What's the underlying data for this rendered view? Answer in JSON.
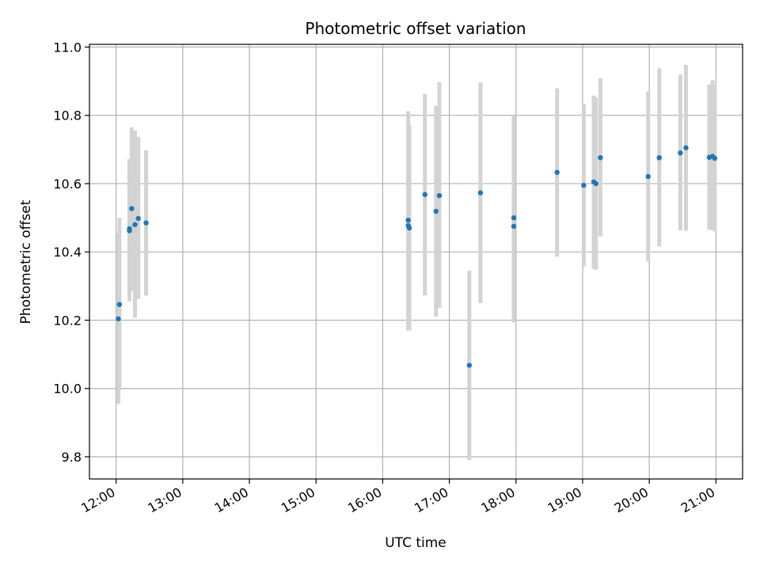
{
  "chart_data": {
    "type": "scatter",
    "title": "Photometric offset variation",
    "xlabel": "UTC time",
    "ylabel": "Photometric offset",
    "x_tick_labels": [
      "12:00",
      "13:00",
      "14:00",
      "15:00",
      "16:00",
      "17:00",
      "18:00",
      "19:00",
      "20:00",
      "21:00"
    ],
    "x_ticks_hours": [
      12,
      13,
      14,
      15,
      16,
      17,
      18,
      19,
      20,
      21
    ],
    "y_tick_labels": [
      "9.8",
      "10.0",
      "10.2",
      "10.4",
      "10.6",
      "10.8",
      "11.0"
    ],
    "y_ticks": [
      9.8,
      10.0,
      10.2,
      10.4,
      10.6,
      10.8,
      11.0
    ],
    "xlim": [
      "11:36",
      "21:24"
    ],
    "ylim": [
      9.735,
      11.008
    ],
    "grid": true,
    "colors": {
      "point": "#1f77b4",
      "errorbar": "#d3d3d3",
      "grid": "#b0b0b0"
    },
    "points": [
      {
        "x": "12:02",
        "y": 10.204,
        "lo": 9.955,
        "hi": 10.455
      },
      {
        "x": "12:03",
        "y": 10.246,
        "lo": 9.995,
        "hi": 10.5
      },
      {
        "x": "12:12",
        "y": 10.462,
        "lo": 10.255,
        "hi": 10.672
      },
      {
        "x": "12:12",
        "y": 10.468,
        "lo": 10.265,
        "hi": 10.672
      },
      {
        "x": "12:14",
        "y": 10.527,
        "lo": 10.285,
        "hi": 10.765
      },
      {
        "x": "12:17",
        "y": 10.48,
        "lo": 10.207,
        "hi": 10.755
      },
      {
        "x": "12:20",
        "y": 10.498,
        "lo": 10.262,
        "hi": 10.737
      },
      {
        "x": "12:27",
        "y": 10.485,
        "lo": 10.272,
        "hi": 10.698
      },
      {
        "x": "16:23",
        "y": 10.493,
        "lo": 10.17,
        "hi": 10.812
      },
      {
        "x": "16:23",
        "y": 10.477,
        "lo": 10.17,
        "hi": 10.78
      },
      {
        "x": "16:24",
        "y": 10.47,
        "lo": 10.17,
        "hi": 10.77
      },
      {
        "x": "16:38",
        "y": 10.568,
        "lo": 10.273,
        "hi": 10.863
      },
      {
        "x": "16:48",
        "y": 10.519,
        "lo": 10.21,
        "hi": 10.828
      },
      {
        "x": "16:51",
        "y": 10.565,
        "lo": 10.236,
        "hi": 10.897
      },
      {
        "x": "17:18",
        "y": 10.068,
        "lo": 9.79,
        "hi": 10.345
      },
      {
        "x": "17:28",
        "y": 10.573,
        "lo": 10.25,
        "hi": 10.896
      },
      {
        "x": "17:58",
        "y": 10.5,
        "lo": 10.195,
        "hi": 10.8
      },
      {
        "x": "17:58",
        "y": 10.475,
        "lo": 10.193,
        "hi": 10.795
      },
      {
        "x": "18:37",
        "y": 10.633,
        "lo": 10.386,
        "hi": 10.879
      },
      {
        "x": "19:01",
        "y": 10.595,
        "lo": 10.358,
        "hi": 10.833
      },
      {
        "x": "19:10",
        "y": 10.605,
        "lo": 10.35,
        "hi": 10.858
      },
      {
        "x": "19:12",
        "y": 10.6,
        "lo": 10.348,
        "hi": 10.852
      },
      {
        "x": "19:16",
        "y": 10.676,
        "lo": 10.445,
        "hi": 10.908
      },
      {
        "x": "19:59",
        "y": 10.621,
        "lo": 10.373,
        "hi": 10.87
      },
      {
        "x": "20:09",
        "y": 10.676,
        "lo": 10.416,
        "hi": 10.938
      },
      {
        "x": "20:28",
        "y": 10.69,
        "lo": 10.463,
        "hi": 10.919
      },
      {
        "x": "20:33",
        "y": 10.705,
        "lo": 10.462,
        "hi": 10.948
      },
      {
        "x": "20:54",
        "y": 10.677,
        "lo": 10.465,
        "hi": 10.89
      },
      {
        "x": "20:57",
        "y": 10.68,
        "lo": 10.463,
        "hi": 10.903
      },
      {
        "x": "20:59",
        "y": 10.674,
        "lo": 10.46,
        "hi": 10.89
      }
    ]
  }
}
